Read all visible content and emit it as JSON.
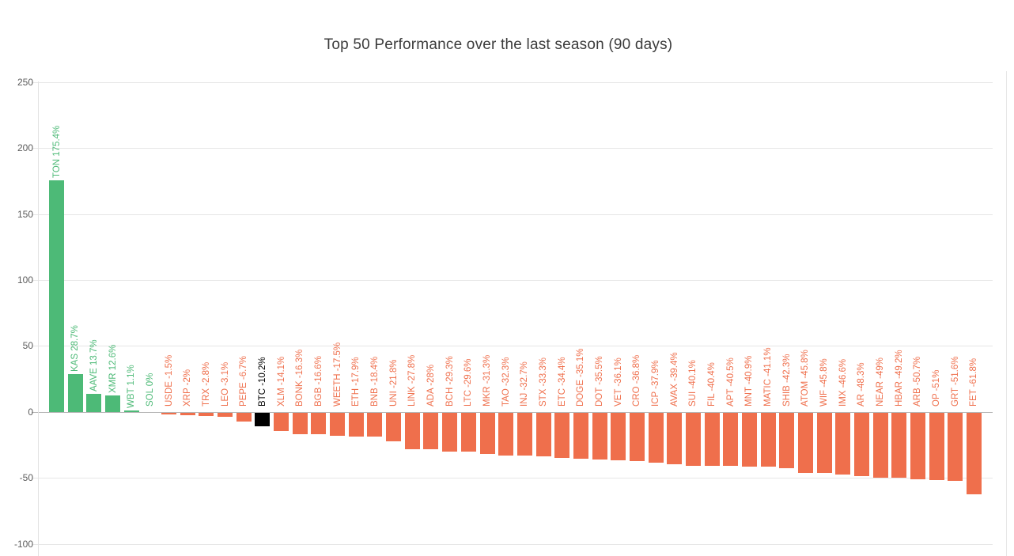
{
  "chart_data": {
    "type": "bar",
    "title": "Top 50 Performance over the last season (90 days)",
    "xlabel": "",
    "ylabel": "",
    "ylim": [
      -100,
      250
    ],
    "yticks": [
      250,
      200,
      150,
      100,
      50,
      0,
      -50,
      -100
    ],
    "grid": true,
    "legend": "none",
    "colors": {
      "positive": "#4dba77",
      "negative": "#ef6f4c",
      "benchmark": "#000000",
      "gridline": "#e6e6e6",
      "zero_line": "#b6b6b6",
      "tick_text": "#5c5c5c",
      "title_text": "#3c3c3c"
    },
    "bars": [
      {
        "symbol": "TON",
        "value": 175.4,
        "label": "TON 175.4%",
        "kind": "positive"
      },
      {
        "symbol": "KAS",
        "value": 28.7,
        "label": "KAS 28.7%",
        "kind": "positive"
      },
      {
        "symbol": "AAVE",
        "value": 13.7,
        "label": "AAVE 13.7%",
        "kind": "positive"
      },
      {
        "symbol": "XMR",
        "value": 12.6,
        "label": "XMR 12.6%",
        "kind": "positive"
      },
      {
        "symbol": "WBT",
        "value": 1.1,
        "label": "WBT 1.1%",
        "kind": "positive"
      },
      {
        "symbol": "SOL",
        "value": 0,
        "label": "SOL 0%",
        "kind": "positive"
      },
      {
        "symbol": "USDE",
        "value": -1.5,
        "label": "USDE -1.5%",
        "kind": "negative"
      },
      {
        "symbol": "XRP",
        "value": -2,
        "label": "XRP -2%",
        "kind": "negative"
      },
      {
        "symbol": "TRX",
        "value": -2.8,
        "label": "TRX -2.8%",
        "kind": "negative"
      },
      {
        "symbol": "LEO",
        "value": -3.1,
        "label": "LEO -3.1%",
        "kind": "negative"
      },
      {
        "symbol": "PEPE",
        "value": -6.7,
        "label": "PEPE -6.7%",
        "kind": "negative"
      },
      {
        "symbol": "BTC",
        "value": -10.2,
        "label": "BTC -10.2%",
        "kind": "benchmark"
      },
      {
        "symbol": "XLM",
        "value": -14.1,
        "label": "XLM -14.1%",
        "kind": "negative"
      },
      {
        "symbol": "BONK",
        "value": -16.3,
        "label": "BONK -16.3%",
        "kind": "negative"
      },
      {
        "symbol": "BGB",
        "value": -16.6,
        "label": "BGB -16.6%",
        "kind": "negative"
      },
      {
        "symbol": "WEETH",
        "value": -17.5,
        "label": "WEETH -17.5%",
        "kind": "negative"
      },
      {
        "symbol": "ETH",
        "value": -17.9,
        "label": "ETH -17.9%",
        "kind": "negative"
      },
      {
        "symbol": "BNB",
        "value": -18.4,
        "label": "BNB -18.4%",
        "kind": "negative"
      },
      {
        "symbol": "UNI",
        "value": -21.8,
        "label": "UNI -21.8%",
        "kind": "negative"
      },
      {
        "symbol": "LINK",
        "value": -27.8,
        "label": "LINK -27.8%",
        "kind": "negative"
      },
      {
        "symbol": "ADA",
        "value": -28,
        "label": "ADA -28%",
        "kind": "negative"
      },
      {
        "symbol": "BCH",
        "value": -29.3,
        "label": "BCH -29.3%",
        "kind": "negative"
      },
      {
        "symbol": "LTC",
        "value": -29.6,
        "label": "LTC -29.6%",
        "kind": "negative"
      },
      {
        "symbol": "MKR",
        "value": -31.3,
        "label": "MKR -31.3%",
        "kind": "negative"
      },
      {
        "symbol": "TAO",
        "value": -32.3,
        "label": "TAO -32.3%",
        "kind": "negative"
      },
      {
        "symbol": "INJ",
        "value": -32.7,
        "label": "INJ -32.7%",
        "kind": "negative"
      },
      {
        "symbol": "STX",
        "value": -33.3,
        "label": "STX -33.3%",
        "kind": "negative"
      },
      {
        "symbol": "ETC",
        "value": -34.4,
        "label": "ETC -34.4%",
        "kind": "negative"
      },
      {
        "symbol": "DOGE",
        "value": -35.1,
        "label": "DOGE -35.1%",
        "kind": "negative"
      },
      {
        "symbol": "DOT",
        "value": -35.5,
        "label": "DOT -35.5%",
        "kind": "negative"
      },
      {
        "symbol": "VET",
        "value": -36.1,
        "label": "VET -36.1%",
        "kind": "negative"
      },
      {
        "symbol": "CRO",
        "value": -36.8,
        "label": "CRO -36.8%",
        "kind": "negative"
      },
      {
        "symbol": "ICP",
        "value": -37.9,
        "label": "ICP -37.9%",
        "kind": "negative"
      },
      {
        "symbol": "AVAX",
        "value": -39.4,
        "label": "AVAX -39.4%",
        "kind": "negative"
      },
      {
        "symbol": "SUI",
        "value": -40.1,
        "label": "SUI -40.1%",
        "kind": "negative"
      },
      {
        "symbol": "FIL",
        "value": -40.4,
        "label": "FIL -40.4%",
        "kind": "negative"
      },
      {
        "symbol": "APT",
        "value": -40.5,
        "label": "APT -40.5%",
        "kind": "negative"
      },
      {
        "symbol": "MNT",
        "value": -40.9,
        "label": "MNT -40.9%",
        "kind": "negative"
      },
      {
        "symbol": "MATIC",
        "value": -41.1,
        "label": "MATIC -41.1%",
        "kind": "negative"
      },
      {
        "symbol": "SHIB",
        "value": -42.3,
        "label": "SHIB -42.3%",
        "kind": "negative"
      },
      {
        "symbol": "ATOM",
        "value": -45.8,
        "label": "ATOM -45.8%",
        "kind": "negative"
      },
      {
        "symbol": "WIF",
        "value": -45.8,
        "label": "WIF -45.8%",
        "kind": "negative"
      },
      {
        "symbol": "IMX",
        "value": -46.6,
        "label": "IMX -46.6%",
        "kind": "negative"
      },
      {
        "symbol": "AR",
        "value": -48.3,
        "label": "AR -48.3%",
        "kind": "negative"
      },
      {
        "symbol": "NEAR",
        "value": -49,
        "label": "NEAR -49%",
        "kind": "negative"
      },
      {
        "symbol": "HBAR",
        "value": -49.2,
        "label": "HBAR -49.2%",
        "kind": "negative"
      },
      {
        "symbol": "ARB",
        "value": -50.7,
        "label": "ARB -50.7%",
        "kind": "negative"
      },
      {
        "symbol": "OP",
        "value": -51,
        "label": "OP -51%",
        "kind": "negative"
      },
      {
        "symbol": "GRT",
        "value": -51.6,
        "label": "GRT -51.6%",
        "kind": "negative"
      },
      {
        "symbol": "FET",
        "value": -61.8,
        "label": "FET -61.8%",
        "kind": "negative"
      }
    ]
  }
}
